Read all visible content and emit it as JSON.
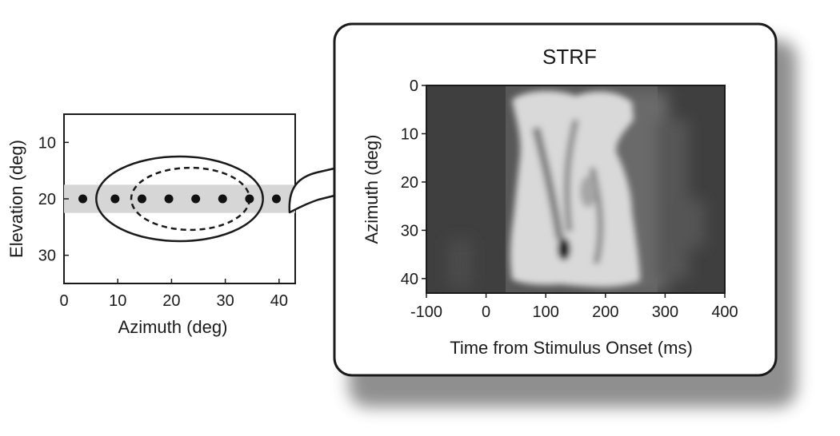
{
  "left_panel": {
    "x_axis_label": "Azimuth (deg)",
    "y_axis_label": "Elevation (deg)",
    "x_ticks": [
      "0",
      "10",
      "20",
      "30",
      "40"
    ],
    "y_ticks": [
      "10",
      "20",
      "30"
    ],
    "x_tick_values": [
      0,
      10,
      20,
      30,
      40
    ],
    "y_tick_values": [
      10,
      20,
      30
    ],
    "x_range": [
      0,
      43
    ],
    "y_range": [
      5,
      35
    ],
    "speaker_azimuths": [
      3.5,
      9.5,
      14.5,
      19.5,
      24.5,
      29.5,
      34.5,
      39.5
    ],
    "speaker_elevation": 20,
    "band_elevation_range": [
      17.5,
      22.5
    ],
    "outer_ellipse": {
      "center_azimuth": 21.5,
      "center_elevation": 20,
      "half_width_azimuth": 15.5,
      "half_height_elevation": 7.5,
      "style": "solid"
    },
    "inner_ellipse": {
      "center_azimuth": 23.5,
      "center_elevation": 20,
      "half_width_azimuth": 11,
      "half_height_elevation": 5.5,
      "style": "dashed"
    }
  },
  "right_panel": {
    "title": "STRF",
    "x_axis_label": "Time from Stimulus Onset (ms)",
    "y_axis_label": "Azimuth (deg)",
    "x_ticks": [
      "-100",
      "0",
      "100",
      "200",
      "300",
      "400"
    ],
    "y_ticks": [
      "0",
      "10",
      "20",
      "30",
      "40"
    ],
    "x_tick_values": [
      -100,
      0,
      100,
      200,
      300,
      400
    ],
    "y_tick_values": [
      0,
      10,
      20,
      30,
      40
    ],
    "x_range": [
      -100,
      400
    ],
    "y_range": [
      0,
      43
    ]
  },
  "colors": {
    "background_dark": "#3f3f3f",
    "response_light": "#d9d9d9",
    "band": "#d6d6d6",
    "frame": "#1a1a1a"
  }
}
